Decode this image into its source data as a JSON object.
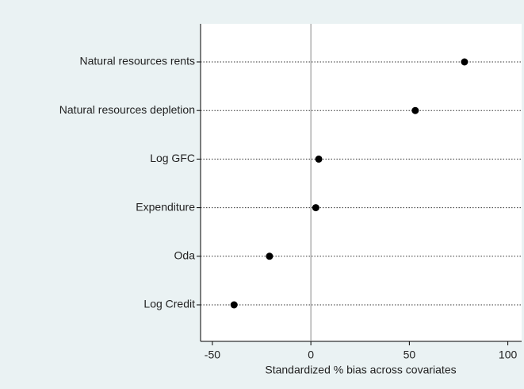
{
  "chart_data": {
    "type": "dot",
    "x_label": "Standardized % bias across covariates",
    "categories": [
      "Natural resources rents",
      "Natural resources depletion",
      "Log GFC",
      "Expenditure",
      "Oda",
      "Log Credit"
    ],
    "values": [
      78,
      53,
      4,
      2.5,
      -21,
      -39
    ],
    "color": "#000000",
    "xlim": [
      -56,
      107
    ],
    "xticks": [
      -50,
      0,
      50,
      100
    ],
    "reference_line": 0
  }
}
